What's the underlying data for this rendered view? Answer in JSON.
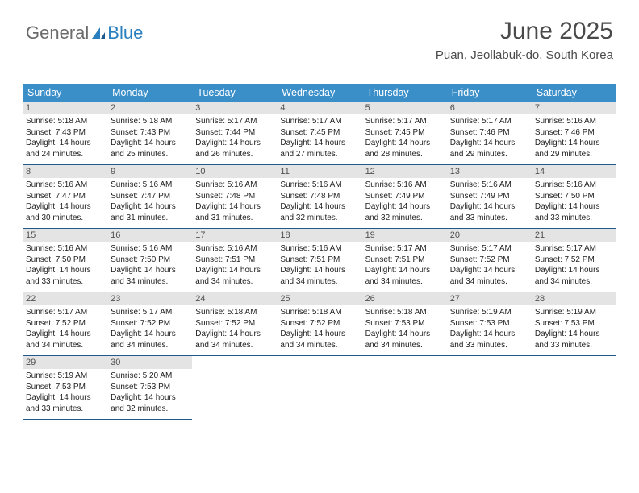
{
  "logo": {
    "text1": "General",
    "text2": "Blue"
  },
  "title": "June 2025",
  "location": "Puan, Jeollabuk-do, South Korea",
  "colors": {
    "header_bg": "#3b8fc9",
    "header_text": "#ffffff",
    "daynum_bg": "#e4e4e4",
    "daynum_text": "#505050",
    "rule": "#1f5a8a",
    "logo_blue": "#2a7fbf",
    "logo_gray": "#6b6b6b",
    "title_color": "#4a4a4a"
  },
  "day_headers": [
    "Sunday",
    "Monday",
    "Tuesday",
    "Wednesday",
    "Thursday",
    "Friday",
    "Saturday"
  ],
  "weeks": [
    [
      {
        "n": "1",
        "sr": "Sunrise: 5:18 AM",
        "ss": "Sunset: 7:43 PM",
        "d1": "Daylight: 14 hours",
        "d2": "and 24 minutes."
      },
      {
        "n": "2",
        "sr": "Sunrise: 5:18 AM",
        "ss": "Sunset: 7:43 PM",
        "d1": "Daylight: 14 hours",
        "d2": "and 25 minutes."
      },
      {
        "n": "3",
        "sr": "Sunrise: 5:17 AM",
        "ss": "Sunset: 7:44 PM",
        "d1": "Daylight: 14 hours",
        "d2": "and 26 minutes."
      },
      {
        "n": "4",
        "sr": "Sunrise: 5:17 AM",
        "ss": "Sunset: 7:45 PM",
        "d1": "Daylight: 14 hours",
        "d2": "and 27 minutes."
      },
      {
        "n": "5",
        "sr": "Sunrise: 5:17 AM",
        "ss": "Sunset: 7:45 PM",
        "d1": "Daylight: 14 hours",
        "d2": "and 28 minutes."
      },
      {
        "n": "6",
        "sr": "Sunrise: 5:17 AM",
        "ss": "Sunset: 7:46 PM",
        "d1": "Daylight: 14 hours",
        "d2": "and 29 minutes."
      },
      {
        "n": "7",
        "sr": "Sunrise: 5:16 AM",
        "ss": "Sunset: 7:46 PM",
        "d1": "Daylight: 14 hours",
        "d2": "and 29 minutes."
      }
    ],
    [
      {
        "n": "8",
        "sr": "Sunrise: 5:16 AM",
        "ss": "Sunset: 7:47 PM",
        "d1": "Daylight: 14 hours",
        "d2": "and 30 minutes."
      },
      {
        "n": "9",
        "sr": "Sunrise: 5:16 AM",
        "ss": "Sunset: 7:47 PM",
        "d1": "Daylight: 14 hours",
        "d2": "and 31 minutes."
      },
      {
        "n": "10",
        "sr": "Sunrise: 5:16 AM",
        "ss": "Sunset: 7:48 PM",
        "d1": "Daylight: 14 hours",
        "d2": "and 31 minutes."
      },
      {
        "n": "11",
        "sr": "Sunrise: 5:16 AM",
        "ss": "Sunset: 7:48 PM",
        "d1": "Daylight: 14 hours",
        "d2": "and 32 minutes."
      },
      {
        "n": "12",
        "sr": "Sunrise: 5:16 AM",
        "ss": "Sunset: 7:49 PM",
        "d1": "Daylight: 14 hours",
        "d2": "and 32 minutes."
      },
      {
        "n": "13",
        "sr": "Sunrise: 5:16 AM",
        "ss": "Sunset: 7:49 PM",
        "d1": "Daylight: 14 hours",
        "d2": "and 33 minutes."
      },
      {
        "n": "14",
        "sr": "Sunrise: 5:16 AM",
        "ss": "Sunset: 7:50 PM",
        "d1": "Daylight: 14 hours",
        "d2": "and 33 minutes."
      }
    ],
    [
      {
        "n": "15",
        "sr": "Sunrise: 5:16 AM",
        "ss": "Sunset: 7:50 PM",
        "d1": "Daylight: 14 hours",
        "d2": "and 33 minutes."
      },
      {
        "n": "16",
        "sr": "Sunrise: 5:16 AM",
        "ss": "Sunset: 7:50 PM",
        "d1": "Daylight: 14 hours",
        "d2": "and 34 minutes."
      },
      {
        "n": "17",
        "sr": "Sunrise: 5:16 AM",
        "ss": "Sunset: 7:51 PM",
        "d1": "Daylight: 14 hours",
        "d2": "and 34 minutes."
      },
      {
        "n": "18",
        "sr": "Sunrise: 5:16 AM",
        "ss": "Sunset: 7:51 PM",
        "d1": "Daylight: 14 hours",
        "d2": "and 34 minutes."
      },
      {
        "n": "19",
        "sr": "Sunrise: 5:17 AM",
        "ss": "Sunset: 7:51 PM",
        "d1": "Daylight: 14 hours",
        "d2": "and 34 minutes."
      },
      {
        "n": "20",
        "sr": "Sunrise: 5:17 AM",
        "ss": "Sunset: 7:52 PM",
        "d1": "Daylight: 14 hours",
        "d2": "and 34 minutes."
      },
      {
        "n": "21",
        "sr": "Sunrise: 5:17 AM",
        "ss": "Sunset: 7:52 PM",
        "d1": "Daylight: 14 hours",
        "d2": "and 34 minutes."
      }
    ],
    [
      {
        "n": "22",
        "sr": "Sunrise: 5:17 AM",
        "ss": "Sunset: 7:52 PM",
        "d1": "Daylight: 14 hours",
        "d2": "and 34 minutes."
      },
      {
        "n": "23",
        "sr": "Sunrise: 5:17 AM",
        "ss": "Sunset: 7:52 PM",
        "d1": "Daylight: 14 hours",
        "d2": "and 34 minutes."
      },
      {
        "n": "24",
        "sr": "Sunrise: 5:18 AM",
        "ss": "Sunset: 7:52 PM",
        "d1": "Daylight: 14 hours",
        "d2": "and 34 minutes."
      },
      {
        "n": "25",
        "sr": "Sunrise: 5:18 AM",
        "ss": "Sunset: 7:52 PM",
        "d1": "Daylight: 14 hours",
        "d2": "and 34 minutes."
      },
      {
        "n": "26",
        "sr": "Sunrise: 5:18 AM",
        "ss": "Sunset: 7:53 PM",
        "d1": "Daylight: 14 hours",
        "d2": "and 34 minutes."
      },
      {
        "n": "27",
        "sr": "Sunrise: 5:19 AM",
        "ss": "Sunset: 7:53 PM",
        "d1": "Daylight: 14 hours",
        "d2": "and 33 minutes."
      },
      {
        "n": "28",
        "sr": "Sunrise: 5:19 AM",
        "ss": "Sunset: 7:53 PM",
        "d1": "Daylight: 14 hours",
        "d2": "and 33 minutes."
      }
    ],
    [
      {
        "n": "29",
        "sr": "Sunrise: 5:19 AM",
        "ss": "Sunset: 7:53 PM",
        "d1": "Daylight: 14 hours",
        "d2": "and 33 minutes."
      },
      {
        "n": "30",
        "sr": "Sunrise: 5:20 AM",
        "ss": "Sunset: 7:53 PM",
        "d1": "Daylight: 14 hours",
        "d2": "and 32 minutes."
      },
      null,
      null,
      null,
      null,
      null
    ]
  ]
}
